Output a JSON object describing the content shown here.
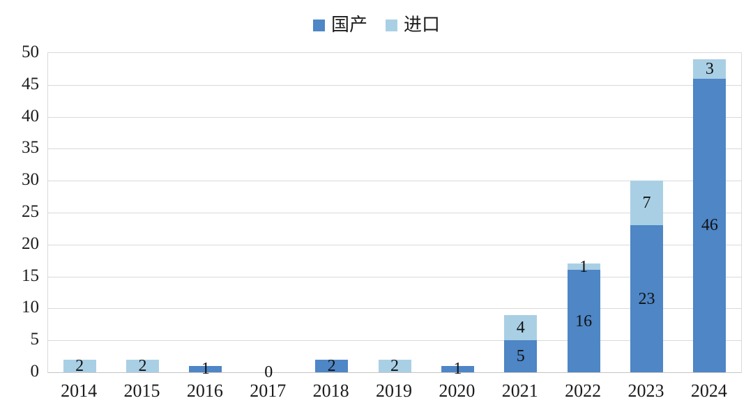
{
  "chart_data": {
    "type": "bar",
    "stacked": true,
    "title": "",
    "xlabel": "",
    "ylabel": "",
    "categories": [
      "2014",
      "2015",
      "2016",
      "2017",
      "2018",
      "2019",
      "2020",
      "2021",
      "2022",
      "2023",
      "2024"
    ],
    "series": [
      {
        "name": "国产",
        "color": "#4e86c6",
        "values": [
          0,
          0,
          1,
          0,
          2,
          0,
          1,
          5,
          16,
          23,
          46
        ]
      },
      {
        "name": "进口",
        "color": "#a9cfe4",
        "values": [
          2,
          2,
          0,
          0,
          0,
          2,
          0,
          4,
          1,
          7,
          3
        ]
      }
    ],
    "totals": [
      2,
      2,
      1,
      0,
      2,
      2,
      1,
      9,
      17,
      30,
      49
    ],
    "data_labels": true,
    "zero_total_label": "0",
    "ylim": [
      0,
      50
    ],
    "ytick_step": 5,
    "yticks": [
      "0",
      "5",
      "10",
      "15",
      "20",
      "25",
      "30",
      "35",
      "40",
      "45",
      "50"
    ],
    "grid": true,
    "legend_position": "top-center",
    "colors": {
      "grid": "#d9d9d9",
      "axis": "#c4c4c4",
      "text": "#1b1b1b"
    }
  }
}
